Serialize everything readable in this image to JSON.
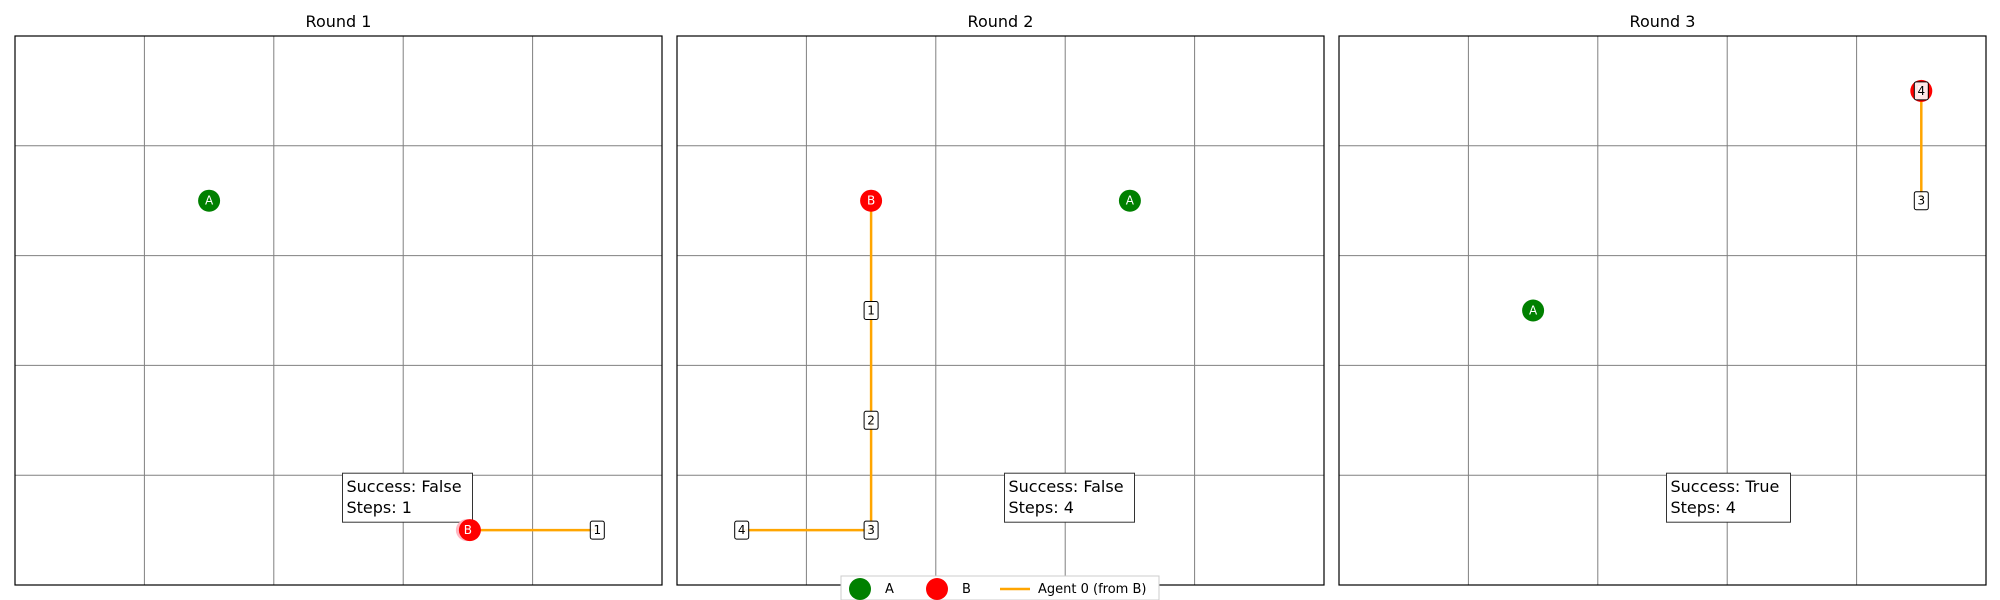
{
  "chart_data": {
    "type": "scatter",
    "grid": true,
    "xlim": [
      0,
      5
    ],
    "ylim": [
      0,
      5
    ],
    "colors": {
      "A": "#008000",
      "B": "#ff0000",
      "start": "#ffb6c1",
      "path": "#ffa500"
    },
    "legend": {
      "placement": "bottom-center",
      "entries": [
        {
          "label": "A",
          "kind": "dot",
          "color": "#008000"
        },
        {
          "label": "B",
          "kind": "dot",
          "color": "#ff0000"
        },
        {
          "label": "Agent 0 (from B)",
          "kind": "line",
          "color": "#ffa500"
        }
      ]
    },
    "panels": [
      {
        "title": "Round 1",
        "a": {
          "label": "A",
          "x": 1.5,
          "y": 3.5
        },
        "b": {
          "label": "B",
          "x": 3.5,
          "y": 0.5
        },
        "start_marker": {
          "x": 3.5,
          "y": 0.5
        },
        "path": [
          {
            "x": 3.5,
            "y": 0.5
          },
          {
            "x": 4.5,
            "y": 0.5
          }
        ],
        "steps": [
          {
            "label": "1",
            "x": 4.5,
            "y": 0.5
          }
        ],
        "info_lines": [
          "Success: False",
          "Steps: 1"
        ]
      },
      {
        "title": "Round 2",
        "a": {
          "label": "A",
          "x": 3.5,
          "y": 3.5
        },
        "b": {
          "label": "B",
          "x": 1.5,
          "y": 3.5
        },
        "path": [
          {
            "x": 1.5,
            "y": 3.5
          },
          {
            "x": 1.5,
            "y": 0.5
          },
          {
            "x": 0.5,
            "y": 0.5
          }
        ],
        "steps": [
          {
            "label": "1",
            "x": 1.5,
            "y": 2.5
          },
          {
            "label": "2",
            "x": 1.5,
            "y": 1.5
          },
          {
            "label": "3",
            "x": 1.5,
            "y": 0.5
          },
          {
            "label": "4",
            "x": 0.5,
            "y": 0.5
          }
        ],
        "info_lines": [
          "Success: False",
          "Steps: 4"
        ]
      },
      {
        "title": "Round 3",
        "a": {
          "label": "A",
          "x": 1.5,
          "y": 2.5
        },
        "b": {
          "label": "B",
          "x": 4.5,
          "y": 4.5
        },
        "path": [
          {
            "x": 4.5,
            "y": 3.5
          },
          {
            "x": 4.5,
            "y": 4.5
          }
        ],
        "steps": [
          {
            "label": "3",
            "x": 4.5,
            "y": 3.5
          },
          {
            "label": "4",
            "x": 4.5,
            "y": 4.5
          }
        ],
        "info_lines": [
          "Success: True",
          "Steps: 4"
        ]
      }
    ]
  }
}
